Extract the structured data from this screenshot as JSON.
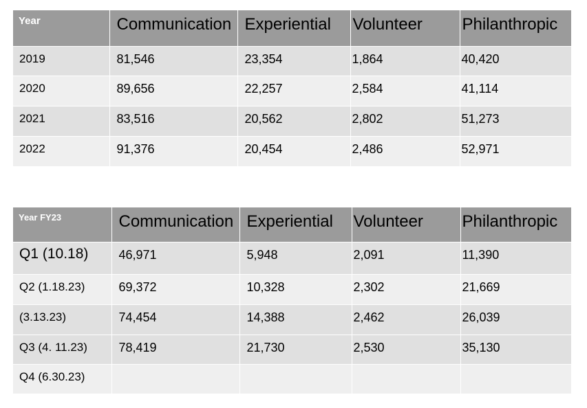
{
  "table1": {
    "headers": [
      "Year",
      "Communication",
      "Experiential",
      "Volunteer",
      "Philanthropic"
    ],
    "rows": [
      [
        "2019",
        "81,546",
        "23,354",
        "1,864",
        "40,420"
      ],
      [
        "2020",
        "89,656",
        "22,257",
        "2,584",
        "41,114"
      ],
      [
        "2021",
        "83,516",
        "20,562",
        "2,802",
        "51,273"
      ],
      [
        "2022",
        "91,376",
        "20,454",
        "2,486",
        "52,971"
      ]
    ]
  },
  "table2": {
    "headers": [
      "Year FY23",
      "Communication",
      "Experiential",
      "Volunteer",
      "Philanthropic"
    ],
    "rows": [
      [
        "Q1 (10.18)",
        "46,971",
        "5,948",
        "2,091",
        "11,390"
      ],
      [
        "Q2 (1.18.23)",
        "69,372",
        "10,328",
        "2,302",
        "21,669"
      ],
      [
        "(3.13.23)",
        "74,454",
        "14,388",
        "2,462",
        "26,039"
      ],
      [
        "Q3 (4. 11.23)",
        "78,419",
        "21,730",
        "2,530",
        "35,130"
      ],
      [
        "Q4 (6.30.23)",
        "",
        "",
        "",
        ""
      ]
    ]
  },
  "colors": {
    "header_bg": "#9b9b9b",
    "row_dark": "#e0e0e0",
    "row_light": "#efefef",
    "header_first_text": "#ffffff"
  }
}
